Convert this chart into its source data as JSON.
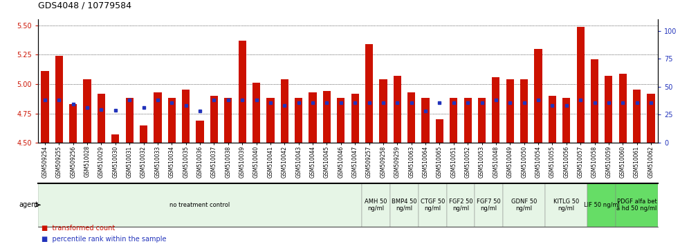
{
  "title": "GDS4048 / 10779584",
  "samples": [
    "GSM509254",
    "GSM509255",
    "GSM509256",
    "GSM510028",
    "GSM510029",
    "GSM510030",
    "GSM510031",
    "GSM510032",
    "GSM510033",
    "GSM510034",
    "GSM510035",
    "GSM510036",
    "GSM510037",
    "GSM510038",
    "GSM510039",
    "GSM510040",
    "GSM510041",
    "GSM510042",
    "GSM510043",
    "GSM510044",
    "GSM510045",
    "GSM510046",
    "GSM510047",
    "GSM509257",
    "GSM509258",
    "GSM509259",
    "GSM510063",
    "GSM510064",
    "GSM510065",
    "GSM510051",
    "GSM510052",
    "GSM510053",
    "GSM510048",
    "GSM510049",
    "GSM510050",
    "GSM510054",
    "GSM510055",
    "GSM510056",
    "GSM510057",
    "GSM510058",
    "GSM510059",
    "GSM510060",
    "GSM510061",
    "GSM510062"
  ],
  "red_values": [
    5.11,
    5.24,
    4.83,
    5.04,
    4.92,
    4.57,
    4.88,
    4.65,
    4.93,
    4.88,
    4.95,
    4.69,
    4.9,
    4.88,
    5.37,
    5.01,
    4.88,
    5.04,
    4.88,
    4.93,
    4.94,
    4.88,
    4.92,
    5.34,
    5.04,
    5.07,
    4.93,
    4.88,
    4.7,
    4.88,
    4.88,
    4.88,
    5.06,
    5.04,
    5.04,
    5.3,
    4.9,
    4.88,
    5.49,
    5.21,
    5.07,
    5.09,
    4.95,
    4.92
  ],
  "blue_values": [
    4.865,
    4.865,
    4.83,
    4.8,
    4.78,
    4.778,
    4.865,
    4.8,
    4.865,
    4.84,
    4.82,
    4.77,
    4.865,
    4.865,
    4.865,
    4.865,
    4.84,
    4.82,
    4.84,
    4.84,
    4.84,
    4.84,
    4.84,
    4.84,
    4.84,
    4.84,
    4.84,
    4.77,
    4.84,
    4.84,
    4.84,
    4.84,
    4.865,
    4.84,
    4.84,
    4.865,
    4.82,
    4.82,
    4.865,
    4.84,
    4.84,
    4.84,
    4.84,
    4.84
  ],
  "ylim_left": [
    4.5,
    5.55
  ],
  "ylim_right": [
    0,
    110
  ],
  "yticks_left": [
    4.5,
    4.75,
    5.0,
    5.25,
    5.5
  ],
  "yticks_right": [
    0,
    25,
    50,
    75,
    100
  ],
  "bar_color": "#cc1100",
  "dot_color": "#2233bb",
  "plot_bg": "#ffffff",
  "fig_bg": "#ffffff",
  "agent_groups": [
    {
      "label": "no treatment control",
      "start": 0,
      "end": 23,
      "color": "#e6f5e6"
    },
    {
      "label": "AMH 50\nng/ml",
      "start": 23,
      "end": 25,
      "color": "#e6f5e6"
    },
    {
      "label": "BMP4 50\nng/ml",
      "start": 25,
      "end": 27,
      "color": "#e6f5e6"
    },
    {
      "label": "CTGF 50\nng/ml",
      "start": 27,
      "end": 29,
      "color": "#e6f5e6"
    },
    {
      "label": "FGF2 50\nng/ml",
      "start": 29,
      "end": 31,
      "color": "#e6f5e6"
    },
    {
      "label": "FGF7 50\nng/ml",
      "start": 31,
      "end": 33,
      "color": "#e6f5e6"
    },
    {
      "label": "GDNF 50\nng/ml",
      "start": 33,
      "end": 36,
      "color": "#e6f5e6"
    },
    {
      "label": "KITLG 50\nng/ml",
      "start": 36,
      "end": 39,
      "color": "#e6f5e6"
    },
    {
      "label": "LIF 50 ng/ml",
      "start": 39,
      "end": 41,
      "color": "#66dd66"
    },
    {
      "label": "PDGF alfa bet\na hd 50 ng/ml",
      "start": 41,
      "end": 44,
      "color": "#66dd66"
    }
  ],
  "left_tick_color": "#cc1100",
  "right_tick_color": "#2233bb",
  "title_fontsize": 9,
  "tick_fontsize": 7,
  "xlabel_fontsize": 5.5,
  "legend_fontsize": 7,
  "bar_width": 0.55
}
